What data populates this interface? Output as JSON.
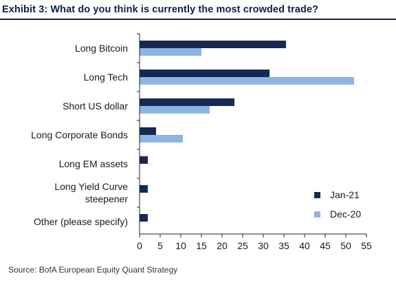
{
  "header": {
    "title": "Exhibit 3: What do you think is currently the most crowded trade?"
  },
  "footer": {
    "source": "Source: BofA European Equity Quant Strategy"
  },
  "colors": {
    "title": "#0b1f4b",
    "series_dark": "#142a55",
    "series_light": "#8eb4e3",
    "axis": "#222222"
  },
  "chart_data": {
    "type": "bar",
    "orientation": "horizontal",
    "categories": [
      [
        "Long Bitcoin"
      ],
      [
        "Long Tech"
      ],
      [
        "Short US dollar"
      ],
      [
        "Long Corporate Bonds"
      ],
      [
        "Long EM assets"
      ],
      [
        "Long Yield Curve",
        "steepener"
      ],
      [
        "Other (please specify)"
      ]
    ],
    "series": [
      {
        "name": "Jan-21",
        "color": "#142a55",
        "values": [
          35.5,
          31.5,
          23,
          4,
          2,
          2,
          2
        ]
      },
      {
        "name": "Dec-20",
        "color": "#8eb4e3",
        "values": [
          15,
          52,
          17,
          10.5,
          0,
          0,
          0
        ]
      }
    ],
    "xlim": [
      0,
      55
    ],
    "xticks": [
      0,
      5,
      10,
      15,
      20,
      25,
      30,
      35,
      40,
      45,
      50,
      55
    ],
    "legend_position": "bottom-right",
    "grid": false
  }
}
